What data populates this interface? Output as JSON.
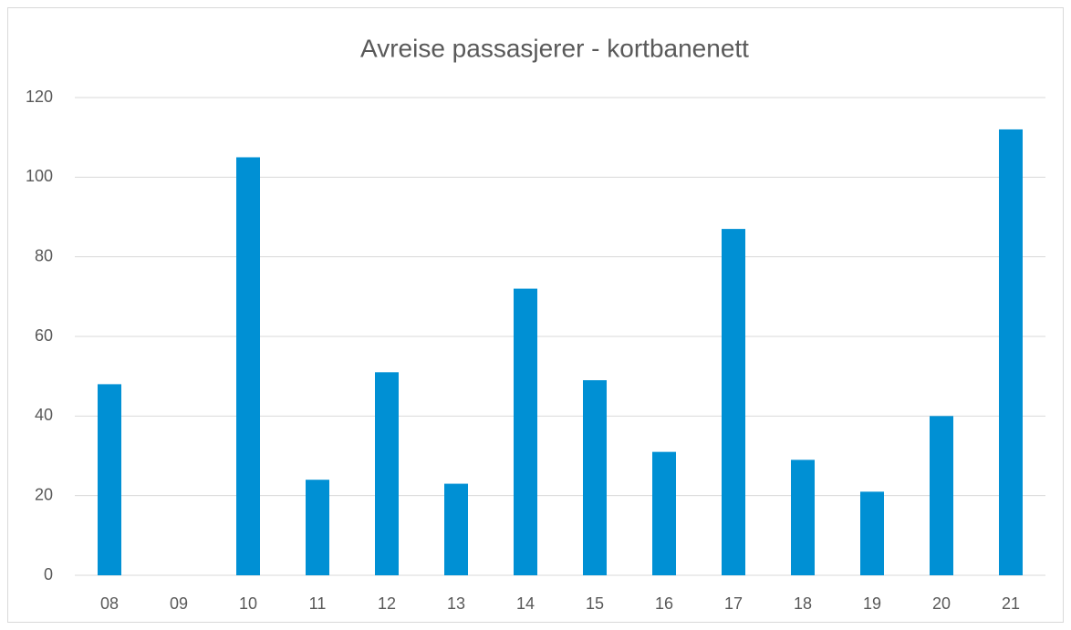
{
  "chart_data": {
    "type": "bar",
    "title": "Avreise passasjerer - kortbanenett",
    "categories": [
      "08",
      "09",
      "10",
      "11",
      "12",
      "13",
      "14",
      "15",
      "16",
      "17",
      "18",
      "19",
      "20",
      "21"
    ],
    "values": [
      48,
      0,
      105,
      24,
      51,
      23,
      72,
      49,
      31,
      87,
      29,
      21,
      40,
      112
    ],
    "color": "#0090d4",
    "ylim": [
      0,
      120
    ],
    "yticks": [
      0,
      20,
      40,
      60,
      80,
      100,
      120
    ],
    "grid": true
  }
}
